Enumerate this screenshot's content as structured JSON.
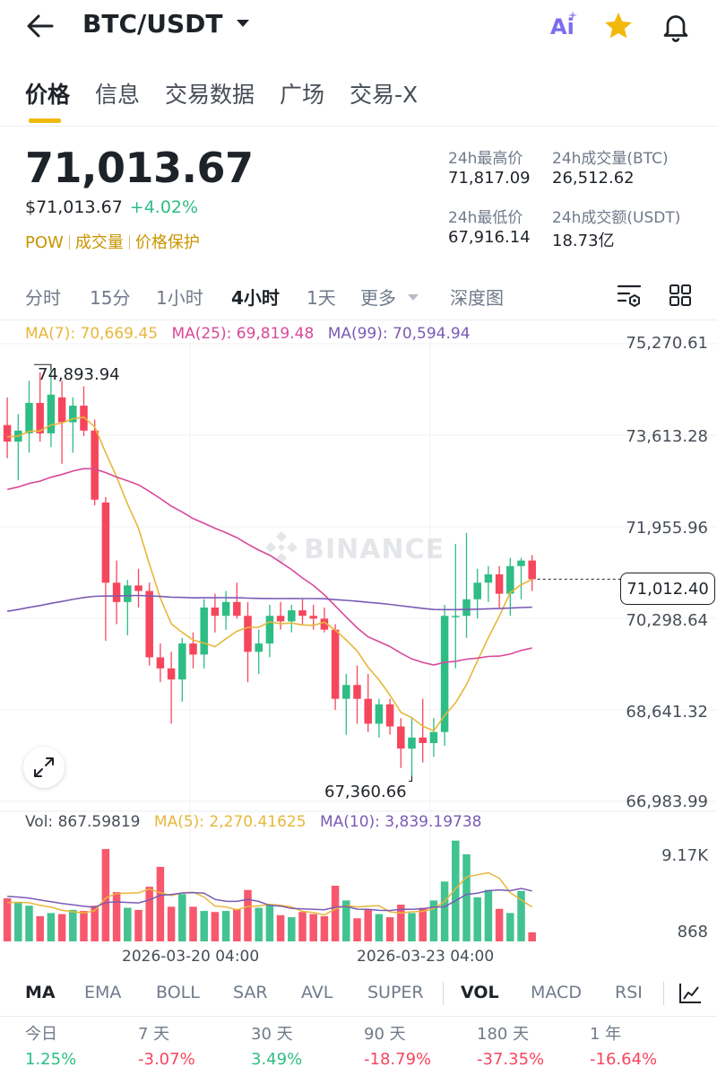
{
  "header": {
    "pair": "BTC/USDT",
    "ai_label": "Ai"
  },
  "tabs": [
    {
      "label": "价格"
    },
    {
      "label": "信息"
    },
    {
      "label": "交易数据"
    },
    {
      "label": "广场"
    },
    {
      "label": "交易-X"
    }
  ],
  "price": {
    "last": "71,013.67",
    "usd": "$71,013.67",
    "change_pct": "+4.02%",
    "tags": [
      "POW",
      "成交量",
      "价格保护"
    ]
  },
  "stats": {
    "high_label": "24h最高价",
    "high_value": "71,817.09",
    "vol_btc_label": "24h成交量(BTC)",
    "vol_btc_value": "26,512.62",
    "low_label": "24h最低价",
    "low_value": "67,916.14",
    "vol_usdt_label": "24h成交额(USDT)",
    "vol_usdt_value": "18.73亿"
  },
  "intervals": [
    {
      "label": "分时"
    },
    {
      "label": "15分"
    },
    {
      "label": "1小时"
    },
    {
      "label": "4小时"
    },
    {
      "label": "1天"
    },
    {
      "label": "更多"
    },
    {
      "label": "深度图"
    }
  ],
  "ma_legend": {
    "ma7": "MA(7): 70,669.45",
    "ma25": "MA(25): 69,819.48",
    "ma99": "MA(99): 70,594.94"
  },
  "chart": {
    "yticks": [
      "75,270.61",
      "73,613.28",
      "71,955.96",
      "70,298.64",
      "68,641.32",
      "66,983.99"
    ],
    "high_marker": "74,893.94",
    "low_marker": "67,360.66",
    "current_price_tag": "71,012.40",
    "watermark": "BINANCE"
  },
  "volume": {
    "legend_vol": "Vol: 867.59819",
    "legend_ma5": "MA(5): 2,270.41625",
    "legend_ma10": "MA(10): 3,839.19738",
    "yticks": [
      "9.17K",
      "868"
    ]
  },
  "dates": [
    "2026-03-20 04:00",
    "2026-03-23 04:00"
  ],
  "indicators": [
    {
      "label": "MA"
    },
    {
      "label": "EMA"
    },
    {
      "label": "BOLL"
    },
    {
      "label": "SAR"
    },
    {
      "label": "AVL"
    },
    {
      "label": "SUPER"
    },
    {
      "label": "VOL"
    },
    {
      "label": "MACD"
    },
    {
      "label": "RSI"
    }
  ],
  "performance": [
    {
      "label": "今日",
      "value": "1.25%"
    },
    {
      "label": "7 天",
      "value": "-3.07%"
    },
    {
      "label": "30 天",
      "value": "3.49%"
    },
    {
      "label": "90 天",
      "value": "-18.79%"
    },
    {
      "label": "180 天",
      "value": "-37.35%"
    },
    {
      "label": "1 年",
      "value": "-16.64%"
    }
  ],
  "colors": {
    "up": "#2ebd85",
    "down": "#f6465d",
    "accent": "#f0b90b",
    "ma7": "#e8b73a",
    "ma25": "#d9489a",
    "ma99": "#7b5bb5",
    "text_primary": "#1e2329",
    "text_secondary": "#707a8a"
  },
  "candles": [
    {
      "o": 73800,
      "h": 74300,
      "l": 73200,
      "c": 73500
    },
    {
      "o": 73500,
      "h": 74000,
      "l": 72800,
      "c": 73700
    },
    {
      "o": 73650,
      "h": 74600,
      "l": 73300,
      "c": 74200
    },
    {
      "o": 74200,
      "h": 74750,
      "l": 73500,
      "c": 73650
    },
    {
      "o": 73650,
      "h": 74893.94,
      "l": 73400,
      "c": 74350
    },
    {
      "o": 74300,
      "h": 74600,
      "l": 73100,
      "c": 73850
    },
    {
      "o": 73850,
      "h": 74300,
      "l": 73300,
      "c": 74150
    },
    {
      "o": 74150,
      "h": 74500,
      "l": 73600,
      "c": 73700
    },
    {
      "o": 73700,
      "h": 73900,
      "l": 72350,
      "c": 72450
    },
    {
      "o": 72400,
      "h": 72500,
      "l": 69900,
      "c": 70950
    },
    {
      "o": 70950,
      "h": 71350,
      "l": 70200,
      "c": 70600
    },
    {
      "o": 70600,
      "h": 71000,
      "l": 70000,
      "c": 70900
    },
    {
      "o": 70900,
      "h": 71200,
      "l": 70500,
      "c": 70800
    },
    {
      "o": 70800,
      "h": 70950,
      "l": 69450,
      "c": 69600
    },
    {
      "o": 69600,
      "h": 69850,
      "l": 69150,
      "c": 69400
    },
    {
      "o": 69400,
      "h": 69700,
      "l": 68400,
      "c": 69200
    },
    {
      "o": 69200,
      "h": 69950,
      "l": 68800,
      "c": 69850
    },
    {
      "o": 69850,
      "h": 70050,
      "l": 69400,
      "c": 69650
    },
    {
      "o": 69650,
      "h": 70650,
      "l": 69400,
      "c": 70500
    },
    {
      "o": 70500,
      "h": 70750,
      "l": 70050,
      "c": 70350
    },
    {
      "o": 70350,
      "h": 70800,
      "l": 70100,
      "c": 70600
    },
    {
      "o": 70600,
      "h": 70950,
      "l": 70300,
      "c": 70350
    },
    {
      "o": 70350,
      "h": 70600,
      "l": 69150,
      "c": 69700
    },
    {
      "o": 69700,
      "h": 70100,
      "l": 69300,
      "c": 69850
    },
    {
      "o": 69850,
      "h": 70550,
      "l": 69600,
      "c": 70350
    },
    {
      "o": 70350,
      "h": 70600,
      "l": 70100,
      "c": 70250
    },
    {
      "o": 70250,
      "h": 70550,
      "l": 70050,
      "c": 70450
    },
    {
      "o": 70450,
      "h": 70650,
      "l": 70200,
      "c": 70350
    },
    {
      "o": 70350,
      "h": 70550,
      "l": 70100,
      "c": 70300
    },
    {
      "o": 70300,
      "h": 70500,
      "l": 70050,
      "c": 70100
    },
    {
      "o": 70100,
      "h": 70200,
      "l": 68650,
      "c": 68850
    },
    {
      "o": 68850,
      "h": 69300,
      "l": 68200,
      "c": 69100
    },
    {
      "o": 69100,
      "h": 69450,
      "l": 68400,
      "c": 68850
    },
    {
      "o": 68850,
      "h": 69300,
      "l": 68250,
      "c": 68400
    },
    {
      "o": 68400,
      "h": 68850,
      "l": 68150,
      "c": 68750
    },
    {
      "o": 68750,
      "h": 68850,
      "l": 68200,
      "c": 68350
    },
    {
      "o": 68350,
      "h": 68500,
      "l": 67600,
      "c": 67950
    },
    {
      "o": 67950,
      "h": 68500,
      "l": 67360.66,
      "c": 68150
    },
    {
      "o": 68150,
      "h": 68850,
      "l": 67700,
      "c": 68050
    },
    {
      "o": 68050,
      "h": 68500,
      "l": 67800,
      "c": 68250
    },
    {
      "o": 68250,
      "h": 70550,
      "l": 68000,
      "c": 70350
    },
    {
      "o": 70350,
      "h": 71650,
      "l": 69400,
      "c": 70350
    },
    {
      "o": 70350,
      "h": 71850,
      "l": 69950,
      "c": 70650
    },
    {
      "o": 70650,
      "h": 71200,
      "l": 70300,
      "c": 70950
    },
    {
      "o": 70950,
      "h": 71250,
      "l": 70600,
      "c": 71100
    },
    {
      "o": 71100,
      "h": 71250,
      "l": 70500,
      "c": 70750
    },
    {
      "o": 70750,
      "h": 71400,
      "l": 70350,
      "c": 71250
    },
    {
      "o": 71250,
      "h": 71400,
      "l": 70650,
      "c": 71350
    },
    {
      "o": 71350,
      "h": 71450,
      "l": 70800,
      "c": 71012.4
    }
  ],
  "volumes": [
    4100,
    3700,
    3400,
    2400,
    2700,
    2600,
    3000,
    2900,
    3400,
    8800,
    4700,
    3200,
    3000,
    5200,
    7100,
    3300,
    4500,
    3300,
    2900,
    2800,
    2900,
    3100,
    4900,
    3200,
    3500,
    2500,
    2300,
    2800,
    2600,
    2400,
    5300,
    3900,
    2200,
    3000,
    2600,
    2300,
    3500,
    2700,
    3200,
    3900,
    5700,
    9600,
    8300,
    4200,
    4900,
    3100,
    2700,
    4800,
    867.59819
  ]
}
